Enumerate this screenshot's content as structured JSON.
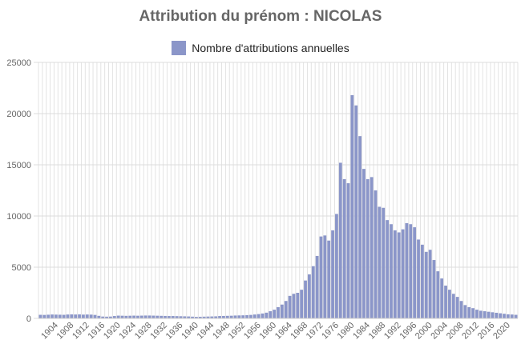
{
  "chart_data": {
    "type": "bar",
    "title": "Attribution du prénom : NICOLAS",
    "series": [
      {
        "name": "Nombre d'attributions annuelles",
        "color": "#8b96c9",
        "x": [
          1900,
          1901,
          1902,
          1903,
          1904,
          1905,
          1906,
          1907,
          1908,
          1909,
          1910,
          1911,
          1912,
          1913,
          1914,
          1915,
          1916,
          1917,
          1918,
          1919,
          1920,
          1921,
          1922,
          1923,
          1924,
          1925,
          1926,
          1927,
          1928,
          1929,
          1930,
          1931,
          1932,
          1933,
          1934,
          1935,
          1936,
          1937,
          1938,
          1939,
          1940,
          1941,
          1942,
          1943,
          1944,
          1945,
          1946,
          1947,
          1948,
          1949,
          1950,
          1951,
          1952,
          1953,
          1954,
          1955,
          1956,
          1957,
          1958,
          1959,
          1960,
          1961,
          1962,
          1963,
          1964,
          1965,
          1966,
          1967,
          1968,
          1969,
          1970,
          1971,
          1972,
          1973,
          1974,
          1975,
          1976,
          1977,
          1978,
          1979,
          1980,
          1981,
          1982,
          1983,
          1984,
          1985,
          1986,
          1987,
          1988,
          1989,
          1990,
          1991,
          1992,
          1993,
          1994,
          1995,
          1996,
          1997,
          1998,
          1999,
          2000,
          2001,
          2002,
          2003,
          2004,
          2005,
          2006,
          2007,
          2008,
          2009,
          2010,
          2011,
          2012,
          2013,
          2014,
          2015,
          2016,
          2017,
          2018,
          2019,
          2020,
          2021,
          2022
        ],
        "values": [
          350,
          340,
          360,
          380,
          370,
          360,
          350,
          380,
          390,
          380,
          390,
          370,
          380,
          370,
          340,
          250,
          180,
          170,
          180,
          230,
          270,
          260,
          250,
          260,
          270,
          260,
          270,
          280,
          280,
          270,
          260,
          250,
          240,
          230,
          230,
          220,
          210,
          200,
          190,
          170,
          150,
          160,
          170,
          180,
          190,
          200,
          230,
          240,
          250,
          260,
          280,
          290,
          300,
          320,
          340,
          380,
          420,
          480,
          560,
          700,
          850,
          1100,
          1350,
          1700,
          2200,
          2400,
          2500,
          2800,
          3700,
          4300,
          5100,
          6100,
          8000,
          8100,
          7600,
          8600,
          10200,
          15200,
          13600,
          13200,
          21800,
          20800,
          17800,
          14600,
          13600,
          13800,
          12500,
          10900,
          10800,
          9600,
          9200,
          8600,
          8400,
          8700,
          9300,
          9200,
          8900,
          7700,
          7200,
          6500,
          6700,
          5700,
          4600,
          3900,
          3200,
          2800,
          2400,
          2100,
          1700,
          1300,
          1100,
          1000,
          850,
          750,
          700,
          650,
          600,
          550,
          500,
          450,
          400,
          380,
          350
        ]
      }
    ],
    "y_ticks": [
      0,
      5000,
      10000,
      15000,
      20000,
      25000
    ],
    "x_tick_labels": [
      "1904",
      "1908",
      "1912",
      "1916",
      "1920",
      "1924",
      "1928",
      "1932",
      "1936",
      "1940",
      "1944",
      "1948",
      "1952",
      "1956",
      "1960",
      "1964",
      "1968",
      "1972",
      "1976",
      "1980",
      "1984",
      "1988",
      "1992",
      "1996",
      "2000",
      "2004",
      "2008",
      "2012",
      "2016",
      "2020"
    ],
    "ylim": [
      0,
      25000
    ],
    "grid": true,
    "legend_position": "top-center"
  }
}
